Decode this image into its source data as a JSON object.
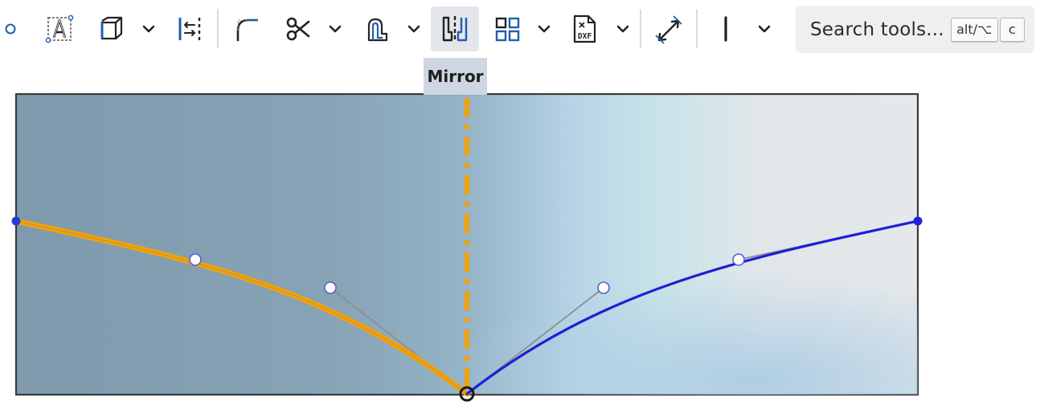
{
  "toolbar": {
    "tools": [
      {
        "id": "point",
        "icon": "point-icon"
      },
      {
        "id": "text",
        "icon": "text-icon"
      },
      {
        "id": "use-project",
        "icon": "use-project-icon",
        "dropdown": true
      },
      {
        "id": "construction",
        "icon": "construction-icon"
      },
      {
        "id": "fillet",
        "icon": "sketch-fillet-icon"
      },
      {
        "id": "trim",
        "icon": "trim-scissors-icon",
        "dropdown": true
      },
      {
        "id": "offset",
        "icon": "offset-icon",
        "dropdown": true
      },
      {
        "id": "mirror",
        "icon": "mirror-icon",
        "active": true
      },
      {
        "id": "pattern",
        "icon": "pattern-grid-icon",
        "dropdown": true
      },
      {
        "id": "dxf",
        "icon": "dxf-import-icon",
        "dropdown": true
      },
      {
        "id": "dimension",
        "icon": "dimension-icon"
      },
      {
        "id": "constraint",
        "icon": "constraint-icon",
        "dropdown": true
      }
    ],
    "search": {
      "placeholder": "Search tools...",
      "shortcut_modifier": "alt/⌥",
      "shortcut_key": "c"
    }
  },
  "tooltip": {
    "label": "Mirror"
  },
  "colors": {
    "accent_orange": "#f2a20a",
    "sketch_blue": "#1f1fd6",
    "active_button": "#e3e6ea",
    "tooltip_bg": "#cdd6e1",
    "region_border": "#3a3a3a"
  }
}
